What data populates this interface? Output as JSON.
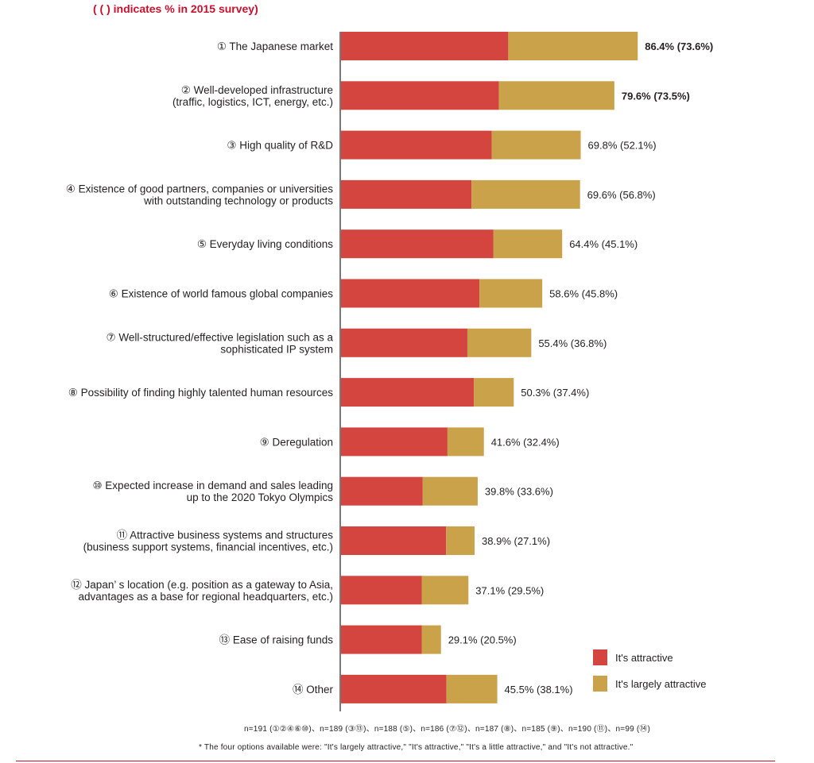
{
  "header_note": "( (   ) indicates % in 2015 survey)",
  "footnotes": {
    "sample_sizes": "n=191 (①②④⑥⑩)、n=189 (③⑬)、n=188 (⑤)、n=186 (⑦⑫)、n=187 (⑧)、n=185 (⑨)、n=190 (⑪)、n=99 (⑭)",
    "options": "* The four options available were: \"It's largely attractive,\" \"It's attractive,\" \"It's a little attractive,\" and \"It's not attractive.\""
  },
  "chart_data": {
    "type": "bar",
    "orientation": "horizontal",
    "stacked": true,
    "xlim": [
      0,
      100
    ],
    "grid": false,
    "legend_position": "bottom-right",
    "categories": [
      [
        "① The Japanese market"
      ],
      [
        "② Well-developed infrastructure",
        "(traffic, logistics, ICT, energy, etc.)"
      ],
      [
        "③ High quality of R&D"
      ],
      [
        "④ Existence of good partners, companies or universities",
        "with outstanding technology or products"
      ],
      [
        "⑤ Everyday living conditions"
      ],
      [
        "⑥ Existence of world famous global companies"
      ],
      [
        "⑦ Well-structured/effective legislation such as a",
        "sophisticated IP system"
      ],
      [
        "⑧ Possibility of finding highly talented human resources"
      ],
      [
        "⑨ Deregulation"
      ],
      [
        "⑩ Expected increase in demand and sales leading",
        "up to the 2020 Tokyo Olympics"
      ],
      [
        "⑪ Attractive business systems and structures",
        "(business support systems, financial incentives, etc.)"
      ],
      [
        "⑫ Japan’ s location (e.g. position as a gateway to Asia,",
        "advantages as a base for regional headquarters, etc.)"
      ],
      [
        "⑬ Ease of raising funds"
      ],
      [
        "⑭ Other"
      ]
    ],
    "series": [
      {
        "name": "It's attractive",
        "color": "#d4453f",
        "values": [
          48.7,
          46.0,
          43.9,
          38.0,
          44.4,
          40.3,
          36.8,
          38.7,
          31.0,
          23.8,
          30.6,
          23.5,
          23.5,
          30.7
        ]
      },
      {
        "name": "It's largely attractive",
        "color": "#c9a24a",
        "values": [
          37.7,
          33.6,
          25.9,
          31.6,
          20.0,
          18.3,
          18.6,
          11.6,
          10.6,
          16.0,
          8.3,
          13.6,
          5.6,
          14.8
        ]
      }
    ],
    "total_labels": [
      "86.4% (73.6%)",
      "79.6% (73.5%)",
      "69.8% (52.1%)",
      "69.6% (56.8%)",
      "64.4% (45.1%)",
      "58.6% (45.8%)",
      "55.4% (36.8%)",
      "50.3% (37.4%)",
      "41.6% (32.4%)",
      "39.8% (33.6%)",
      "38.9% (27.1%)",
      "37.1% (29.5%)",
      "29.1% (20.5%)",
      "45.5% (38.1%)"
    ],
    "bold_labels": [
      0,
      1
    ]
  }
}
